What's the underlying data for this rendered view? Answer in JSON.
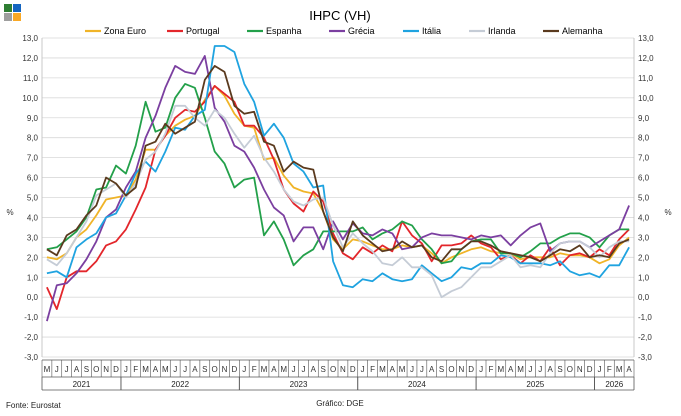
{
  "logo": {
    "colors": [
      "#2e7d32",
      "#1565c0",
      "#9e9e9e",
      "#f9a825"
    ]
  },
  "footer": {
    "source": "Fonte: Eurostat",
    "credit": "Gráfico: DGE"
  },
  "chart_data": {
    "type": "line",
    "title": "IHPC (VH)",
    "ylabel_left": "%",
    "ylabel_right": "%",
    "ylim": [
      -3,
      13
    ],
    "yticks": [
      "-3,0",
      "-2,0",
      "-1,0",
      "0,0",
      "1,0",
      "2,0",
      "3,0",
      "4,0",
      "5,0",
      "6,0",
      "7,0",
      "8,0",
      "9,0",
      "10,0",
      "11,0",
      "12,0",
      "13,0"
    ],
    "x_months": [
      "M",
      "J",
      "J",
      "A",
      "S",
      "O",
      "N",
      "D",
      "J",
      "F",
      "M",
      "A",
      "M",
      "J",
      "J",
      "A",
      "S",
      "O",
      "N",
      "D",
      "J",
      "F",
      "M",
      "A",
      "M",
      "J",
      "J",
      "A",
      "S",
      "O",
      "N",
      "D",
      "J",
      "F",
      "M",
      "A",
      "M",
      "J",
      "J",
      "A",
      "S",
      "O",
      "N",
      "D",
      "J",
      "F",
      "M",
      "A",
      "M",
      "J",
      "J",
      "A",
      "S",
      "O",
      "N",
      "D",
      "J",
      "F",
      "M",
      "A"
    ],
    "x_years": [
      {
        "label": "2021",
        "start": 0,
        "end": 7
      },
      {
        "label": "2022",
        "start": 8,
        "end": 19
      },
      {
        "label": "2023",
        "start": 20,
        "end": 31
      },
      {
        "label": "2024",
        "start": 32,
        "end": 43
      },
      {
        "label": "2025",
        "start": 44,
        "end": 55
      },
      {
        "label": "2026",
        "start": 56,
        "end": 59
      }
    ],
    "grid": true,
    "legend": "top",
    "series": [
      {
        "name": "Zona Euro",
        "color": "#f0b428",
        "values": [
          2.0,
          1.9,
          2.2,
          3.0,
          3.4,
          4.1,
          4.9,
          5.0,
          5.1,
          5.9,
          7.4,
          7.4,
          8.1,
          8.6,
          8.9,
          9.1,
          9.9,
          10.6,
          10.1,
          9.2,
          8.6,
          8.5,
          6.9,
          7.0,
          6.1,
          5.5,
          5.3,
          5.2,
          4.3,
          2.9,
          2.4,
          2.9,
          2.8,
          2.6,
          2.4,
          2.4,
          2.6,
          2.5,
          2.6,
          2.2,
          1.7,
          2.0,
          2.2,
          2.4,
          2.5,
          2.3,
          2.2,
          2.2,
          1.9,
          2.0,
          2.0,
          2.0,
          2.2,
          2.1,
          2.1,
          2.0,
          1.7,
          1.9,
          2.6,
          3.0
        ]
      },
      {
        "name": "Portugal",
        "color": "#e3262b",
        "values": [
          0.5,
          -0.6,
          1.0,
          1.3,
          1.3,
          1.8,
          2.6,
          2.8,
          3.4,
          4.4,
          5.5,
          7.4,
          8.1,
          9.0,
          9.4,
          9.3,
          9.8,
          10.6,
          10.2,
          9.8,
          8.6,
          8.6,
          8.0,
          6.9,
          5.4,
          4.7,
          4.3,
          5.3,
          4.8,
          3.2,
          2.2,
          1.9,
          2.5,
          2.2,
          2.6,
          2.3,
          3.8,
          3.1,
          2.7,
          1.8,
          2.6,
          2.6,
          2.7,
          3.1,
          2.7,
          2.5,
          1.9,
          2.1,
          1.7,
          2.1,
          1.8,
          2.5,
          1.6,
          2.1,
          2.2,
          2.0,
          2.4,
          2.1,
          2.9,
          3.4
        ]
      },
      {
        "name": "Espanha",
        "color": "#23a04a",
        "values": [
          2.4,
          2.5,
          2.9,
          3.3,
          4.0,
          5.4,
          5.5,
          6.6,
          6.2,
          7.6,
          9.8,
          8.3,
          8.5,
          10.0,
          10.7,
          10.5,
          9.0,
          7.3,
          6.7,
          5.5,
          5.9,
          6.0,
          3.1,
          3.8,
          2.9,
          1.6,
          2.1,
          2.4,
          3.3,
          3.3,
          3.3,
          3.3,
          3.5,
          2.9,
          3.2,
          3.4,
          3.8,
          3.6,
          2.9,
          2.4,
          1.7,
          1.8,
          2.4,
          2.8,
          2.9,
          2.9,
          2.2,
          2.2,
          2.0,
          2.3,
          2.7,
          2.7,
          3.0,
          3.2,
          3.2,
          3.0,
          2.5,
          3.1,
          3.4,
          3.4
        ]
      },
      {
        "name": "Grécia",
        "color": "#7b3fa0",
        "values": [
          -1.2,
          0.6,
          0.7,
          1.2,
          1.9,
          2.8,
          4.0,
          4.4,
          5.5,
          6.3,
          8.0,
          9.1,
          10.5,
          11.6,
          11.3,
          11.2,
          12.1,
          9.5,
          8.8,
          7.6,
          7.3,
          6.5,
          5.4,
          4.5,
          4.1,
          2.8,
          3.5,
          3.5,
          2.4,
          3.8,
          2.9,
          3.7,
          3.2,
          3.1,
          3.4,
          3.2,
          2.4,
          2.5,
          3.0,
          3.2,
          3.1,
          3.1,
          3.0,
          2.9,
          3.1,
          3.0,
          3.1,
          2.6,
          3.1,
          3.5,
          3.7,
          2.3,
          2.7,
          2.8,
          2.8,
          2.5,
          2.8,
          3.1,
          3.4,
          4.6
        ]
      },
      {
        "name": "Itália",
        "color": "#1fa3e0",
        "values": [
          1.2,
          1.3,
          1.0,
          2.5,
          2.9,
          3.2,
          4.0,
          4.2,
          5.1,
          6.2,
          6.8,
          6.3,
          7.3,
          8.5,
          8.4,
          9.1,
          9.4,
          12.6,
          12.6,
          12.3,
          10.7,
          9.8,
          8.1,
          8.7,
          8.0,
          6.7,
          6.3,
          5.5,
          5.6,
          1.8,
          0.6,
          0.5,
          0.9,
          0.8,
          1.2,
          0.9,
          0.8,
          0.9,
          1.6,
          1.2,
          0.8,
          1.0,
          1.5,
          1.4,
          1.7,
          1.7,
          2.1,
          2.0,
          1.7,
          1.7,
          1.7,
          1.6,
          1.8,
          1.3,
          1.1,
          1.2,
          1.0,
          1.6,
          1.6,
          2.5
        ]
      },
      {
        "name": "Irlanda",
        "color": "#c5ccd6",
        "values": [
          1.9,
          1.6,
          2.2,
          3.0,
          3.8,
          5.1,
          5.4,
          5.7,
          5.0,
          5.7,
          6.9,
          7.3,
          8.2,
          9.6,
          9.6,
          9.0,
          8.6,
          9.4,
          9.0,
          8.2,
          7.5,
          8.1,
          7.0,
          6.3,
          5.4,
          4.8,
          4.6,
          4.9,
          5.0,
          3.6,
          2.5,
          3.2,
          2.7,
          2.3,
          1.7,
          1.6,
          2.0,
          1.5,
          1.5,
          1.1,
          0.0,
          0.3,
          0.5,
          1.0,
          1.5,
          1.5,
          1.8,
          2.1,
          1.5,
          1.6,
          1.5,
          2.2,
          2.7,
          2.8,
          2.8,
          2.5,
          2.0,
          2.5,
          2.8,
          2.8
        ]
      },
      {
        "name": "Alemanha",
        "color": "#5a3a1e",
        "values": [
          2.4,
          2.1,
          3.1,
          3.4,
          4.1,
          4.6,
          6.0,
          5.7,
          5.1,
          5.5,
          7.6,
          7.8,
          8.7,
          8.2,
          8.5,
          8.8,
          10.9,
          11.6,
          11.3,
          9.6,
          9.2,
          9.3,
          7.8,
          7.6,
          6.3,
          6.8,
          6.5,
          6.4,
          4.3,
          3.0,
          2.3,
          3.8,
          3.1,
          2.7,
          2.3,
          2.4,
          2.8,
          2.5,
          2.6,
          2.0,
          1.8,
          2.4,
          2.4,
          2.8,
          2.8,
          2.6,
          2.3,
          2.2,
          2.1,
          2.0,
          1.8,
          2.1,
          2.4,
          2.3,
          2.6,
          2.0,
          2.1,
          2.0,
          2.7,
          2.9
        ]
      }
    ]
  }
}
